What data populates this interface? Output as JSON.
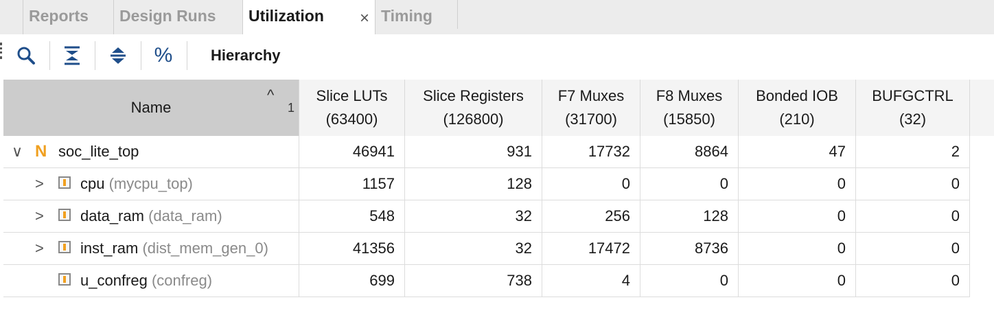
{
  "tabs": [
    {
      "label": "Reports",
      "active": false
    },
    {
      "label": "Design Runs",
      "active": false
    },
    {
      "label": "Utilization",
      "active": true,
      "close": "×"
    },
    {
      "label": "Timing",
      "active": false
    }
  ],
  "toolbar": {
    "buttons": [
      {
        "icon": "search-icon"
      },
      {
        "icon": "collapse-all-icon"
      },
      {
        "icon": "expand-all-icon"
      },
      {
        "icon": "percent-icon",
        "glyph": "%"
      }
    ],
    "title": "Hierarchy"
  },
  "table": {
    "sort": {
      "arrow": "^",
      "index": "1"
    },
    "columns": [
      {
        "label": "Name",
        "sub": ""
      },
      {
        "label": "Slice LUTs",
        "sub": "(63400)"
      },
      {
        "label": "Slice Registers",
        "sub": "(126800)"
      },
      {
        "label": "F7 Muxes",
        "sub": "(31700)"
      },
      {
        "label": "F8 Muxes",
        "sub": "(15850)"
      },
      {
        "label": "Bonded IOB",
        "sub": "(210)"
      },
      {
        "label": "BUFGCTRL",
        "sub": "(32)"
      }
    ],
    "rows": [
      {
        "instance": "soc_lite_top",
        "module": "",
        "expander": "∨",
        "values": [
          "46941",
          "931",
          "17732",
          "8864",
          "47",
          "2"
        ]
      },
      {
        "instance": "cpu",
        "module": "(mycpu_top)",
        "expander": ">",
        "values": [
          "1157",
          "128",
          "0",
          "0",
          "0",
          "0"
        ]
      },
      {
        "instance": "data_ram",
        "module": "(data_ram)",
        "expander": ">",
        "values": [
          "548",
          "32",
          "256",
          "128",
          "0",
          "0"
        ]
      },
      {
        "instance": "inst_ram",
        "module": "(dist_mem_gen_0)",
        "expander": ">",
        "values": [
          "41356",
          "32",
          "17472",
          "8736",
          "0",
          "0"
        ]
      },
      {
        "instance": "u_confreg",
        "module": "(confreg)",
        "expander": "",
        "values": [
          "699",
          "738",
          "4",
          "0",
          "0",
          "0"
        ]
      }
    ],
    "top_icon": "N"
  },
  "colors": {
    "accent_orange": "#f0a020",
    "icon_blue": "#1f4e8a"
  }
}
